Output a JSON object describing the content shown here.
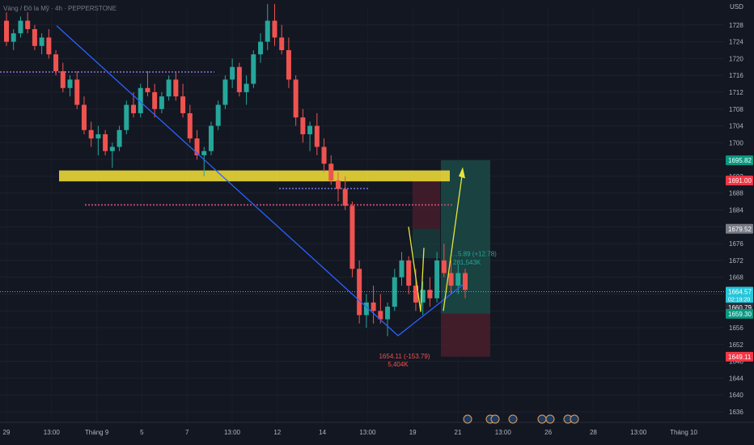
{
  "header": {
    "symbol_text": "Vàng / Đô la Mỹ · 4h · PEPPERSTONE",
    "currency": "USD"
  },
  "colors": {
    "background": "#131722",
    "up": "#26a69a",
    "down": "#ef5350",
    "trendline": "#2962ff",
    "zone": "#e6d435",
    "annotation_arrow": "#e6e63a",
    "target_box": "#1b4a45",
    "stop_box": "#4a1d2a"
  },
  "chart_data": {
    "type": "candlestick",
    "title": "",
    "xlabel": "",
    "ylabel": "USD",
    "ylim": [
      1633.5,
      1732
    ],
    "y_ticks": [
      1636,
      1640,
      1644,
      1648,
      1652,
      1656,
      1660,
      1664,
      1668,
      1672,
      1676,
      1680,
      1684,
      1688,
      1692,
      1696,
      1700,
      1704,
      1708,
      1712,
      1716,
      1720,
      1724,
      1728
    ],
    "x_ticks": [
      "29",
      "13:00",
      "Tháng 9",
      "5",
      "7",
      "13:00",
      "12",
      "14",
      "13:00",
      "19",
      "21",
      "13:00",
      "26",
      "28",
      "13:00",
      "Tháng 10"
    ],
    "price_tags": [
      {
        "value": "1695.82",
        "color": "#089981"
      },
      {
        "value": "1691.00",
        "color": "#f23645"
      },
      {
        "value": "1679.52",
        "color": "#787b86"
      },
      {
        "value": "1664.57",
        "color": "#26c6da",
        "sub": "02:19:20"
      },
      {
        "value": "1660.79",
        "color": "#2a2e39"
      },
      {
        "value": "1659.30",
        "color": "#089981"
      },
      {
        "value": "1649.11",
        "color": "#f23645"
      }
    ],
    "annotations": [
      {
        "text": "1654.11 (-153.79)",
        "value": 1654.11
      },
      {
        "text": "5,404K",
        "value": null
      },
      {
        "text": "…5.89 (+12.78)",
        "value": null
      },
      {
        "text": "281,543K",
        "value": null
      }
    ],
    "resistance_zone": [
      1690.8,
      1693.4
    ],
    "dotted_levels": [
      1716.8,
      1685.2,
      1689.1
    ],
    "trendline_points": [
      {
        "x": "Aug 31",
        "y": 1727.8
      },
      {
        "x": "Sep 16",
        "y": 1654.11
      },
      {
        "x": "Sep 21",
        "y": 1666.2
      }
    ],
    "position": {
      "entry": 1659.3,
      "target": 1695.82,
      "stop": 1649.11
    },
    "candles": [
      [
        1729,
        1731,
        1723,
        1724
      ],
      [
        1724,
        1727,
        1722,
        1726
      ],
      [
        1726,
        1730,
        1725,
        1729
      ],
      [
        1729,
        1731,
        1726,
        1727
      ],
      [
        1727,
        1728,
        1722,
        1723
      ],
      [
        1723,
        1726,
        1721,
        1725
      ],
      [
        1725,
        1727,
        1720,
        1721
      ],
      [
        1721,
        1722,
        1716,
        1717
      ],
      [
        1717,
        1719,
        1712,
        1713
      ],
      [
        1713,
        1716,
        1711,
        1715
      ],
      [
        1715,
        1717,
        1708,
        1709
      ],
      [
        1709,
        1711,
        1702,
        1703
      ],
      [
        1703,
        1705,
        1699,
        1701
      ],
      [
        1701,
        1704,
        1697,
        1702
      ],
      [
        1702,
        1703,
        1697,
        1698
      ],
      [
        1698,
        1700,
        1694,
        1699
      ],
      [
        1699,
        1704,
        1698,
        1703
      ],
      [
        1703,
        1710,
        1702,
        1709
      ],
      [
        1709,
        1712,
        1706,
        1707
      ],
      [
        1707,
        1714,
        1706,
        1713
      ],
      [
        1713,
        1717,
        1711,
        1712
      ],
      [
        1712,
        1714,
        1706,
        1708
      ],
      [
        1708,
        1712,
        1707,
        1711
      ],
      [
        1711,
        1716,
        1710,
        1715
      ],
      [
        1715,
        1717,
        1710,
        1711
      ],
      [
        1711,
        1714,
        1706,
        1707
      ],
      [
        1707,
        1709,
        1700,
        1701
      ],
      [
        1701,
        1703,
        1696,
        1697
      ],
      [
        1697,
        1699,
        1692,
        1698
      ],
      [
        1698,
        1705,
        1697,
        1704
      ],
      [
        1704,
        1710,
        1703,
        1709
      ],
      [
        1709,
        1716,
        1708,
        1715
      ],
      [
        1715,
        1720,
        1713,
        1718
      ],
      [
        1718,
        1719,
        1711,
        1712
      ],
      [
        1712,
        1716,
        1709,
        1714
      ],
      [
        1714,
        1722,
        1713,
        1721
      ],
      [
        1721,
        1726,
        1719,
        1724
      ],
      [
        1724,
        1733,
        1722,
        1729
      ],
      [
        1729,
        1733,
        1723,
        1725
      ],
      [
        1725,
        1728,
        1721,
        1722
      ],
      [
        1722,
        1725,
        1713,
        1715
      ],
      [
        1715,
        1716,
        1704,
        1706
      ],
      [
        1706,
        1708,
        1700,
        1702
      ],
      [
        1702,
        1705,
        1698,
        1704
      ],
      [
        1704,
        1707,
        1697,
        1699
      ],
      [
        1699,
        1701,
        1693,
        1695
      ],
      [
        1695,
        1697,
        1690,
        1691
      ],
      [
        1691,
        1693,
        1686,
        1689
      ],
      [
        1689,
        1692,
        1684,
        1685
      ],
      [
        1685,
        1686,
        1668,
        1670
      ],
      [
        1670,
        1672,
        1657,
        1659
      ],
      [
        1659,
        1664,
        1656,
        1662
      ],
      [
        1662,
        1666,
        1657,
        1660
      ],
      [
        1660,
        1664,
        1657,
        1658
      ],
      [
        1658,
        1662,
        1654,
        1661
      ],
      [
        1661,
        1670,
        1660,
        1668
      ],
      [
        1668,
        1674,
        1666,
        1672
      ],
      [
        1672,
        1673,
        1664,
        1666
      ],
      [
        1666,
        1670,
        1660,
        1662
      ],
      [
        1662,
        1667,
        1659,
        1665
      ],
      [
        1665,
        1668,
        1661,
        1663
      ],
      [
        1663,
        1674,
        1662,
        1672
      ],
      [
        1672,
        1676,
        1668,
        1669
      ],
      [
        1669,
        1672,
        1664,
        1666
      ],
      [
        1666,
        1671,
        1664,
        1669
      ],
      [
        1669,
        1670,
        1663,
        1665
      ]
    ]
  }
}
